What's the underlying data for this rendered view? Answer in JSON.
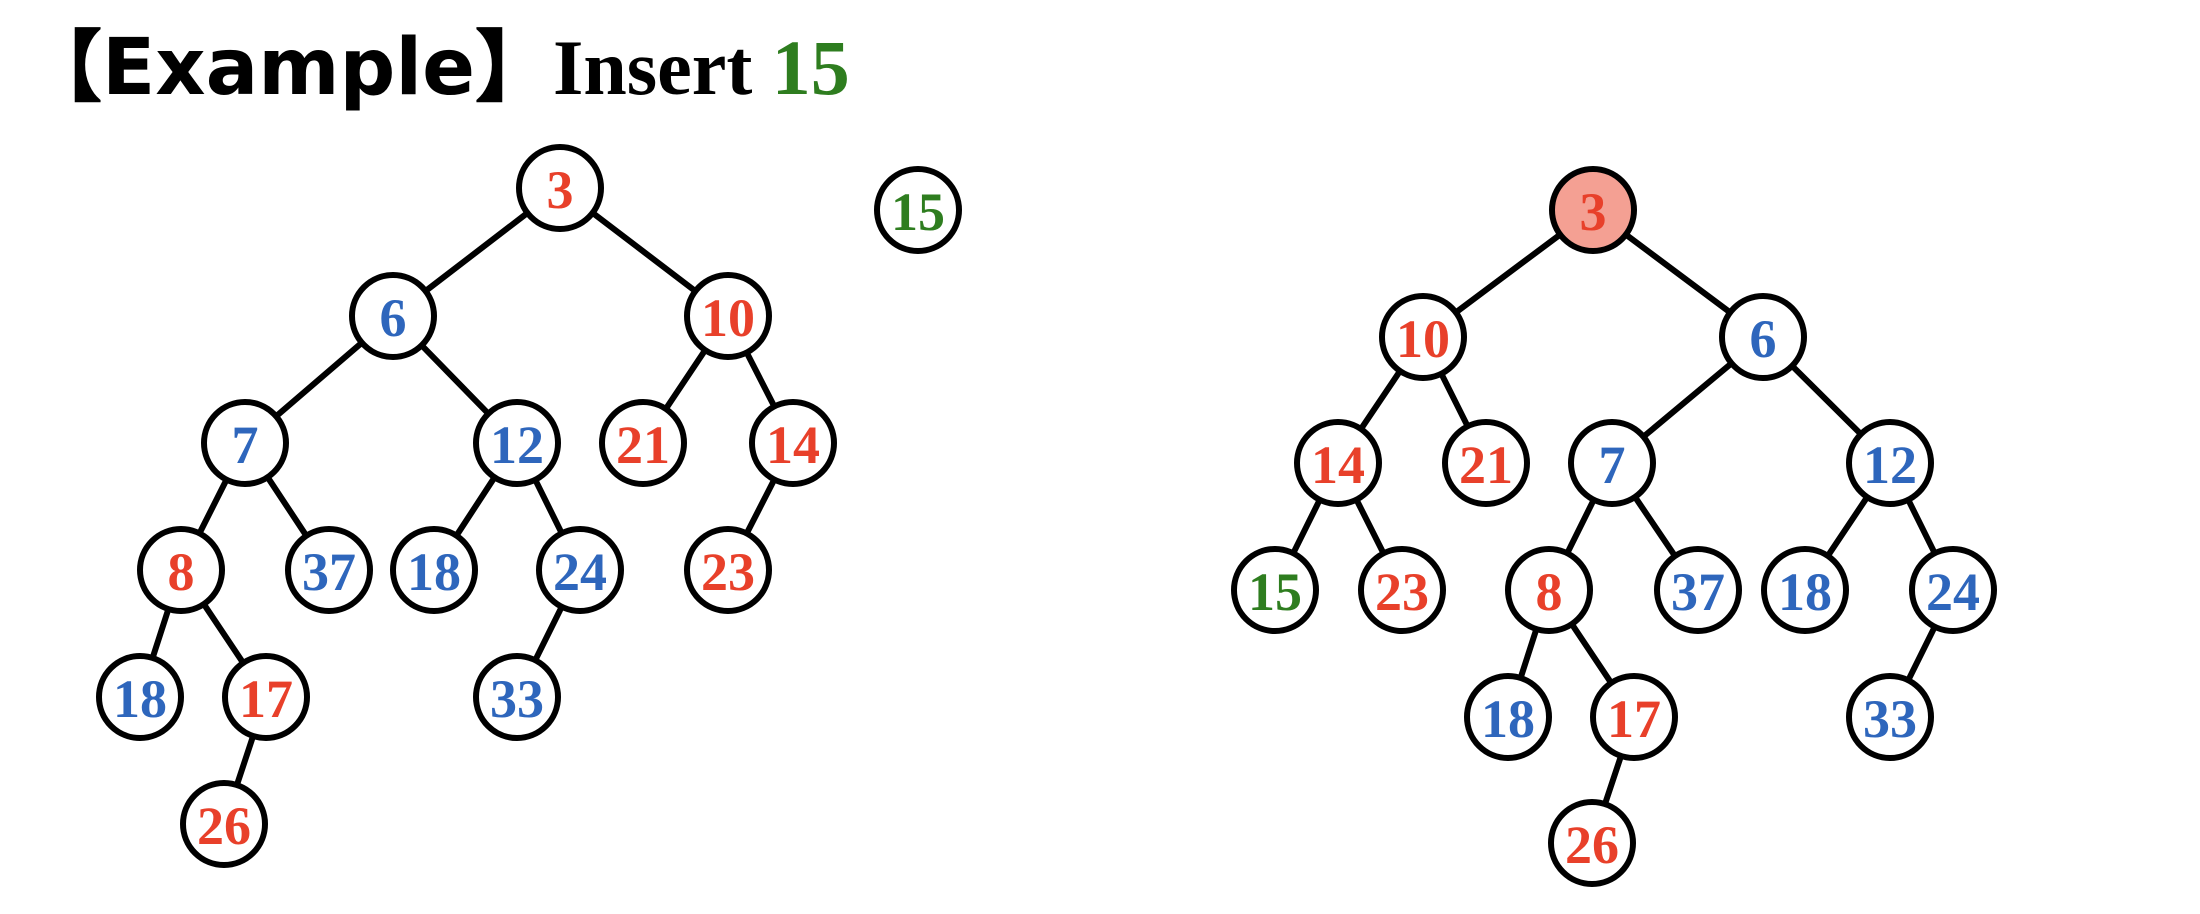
{
  "title": {
    "prefix": "【Example】",
    "action": "Insert",
    "value": "15"
  },
  "colors": {
    "red": "#E8402A",
    "blue": "#2E66BC",
    "green": "#2E7D1F",
    "highlight_fill": "#F4A093",
    "line": "#000000"
  },
  "trees": [
    {
      "name": "before",
      "nodes": [
        {
          "id": "a3",
          "value": "3",
          "color": "red"
        },
        {
          "id": "a6",
          "value": "6",
          "color": "blue",
          "parent": "a3"
        },
        {
          "id": "a10",
          "value": "10",
          "color": "red",
          "parent": "a3"
        },
        {
          "id": "a7",
          "value": "7",
          "color": "blue",
          "parent": "a6"
        },
        {
          "id": "a12",
          "value": "12",
          "color": "blue",
          "parent": "a6"
        },
        {
          "id": "a21",
          "value": "21",
          "color": "red",
          "parent": "a10"
        },
        {
          "id": "a14",
          "value": "14",
          "color": "red",
          "parent": "a10"
        },
        {
          "id": "a8",
          "value": "8",
          "color": "red",
          "parent": "a7"
        },
        {
          "id": "a37",
          "value": "37",
          "color": "blue",
          "parent": "a7"
        },
        {
          "id": "a18b",
          "value": "18",
          "color": "blue",
          "parent": "a12"
        },
        {
          "id": "a24",
          "value": "24",
          "color": "blue",
          "parent": "a12"
        },
        {
          "id": "a23",
          "value": "23",
          "color": "red",
          "parent": "a14"
        },
        {
          "id": "a18a",
          "value": "18",
          "color": "blue",
          "parent": "a8"
        },
        {
          "id": "a17",
          "value": "17",
          "color": "red",
          "parent": "a8"
        },
        {
          "id": "a33",
          "value": "33",
          "color": "blue",
          "parent": "a24"
        },
        {
          "id": "a26",
          "value": "26",
          "color": "red",
          "parent": "a17"
        }
      ]
    },
    {
      "name": "new-node",
      "nodes": [
        {
          "id": "n15",
          "value": "15",
          "color": "green"
        }
      ]
    },
    {
      "name": "after",
      "nodes": [
        {
          "id": "b3",
          "value": "3",
          "color": "red",
          "highlighted": true
        },
        {
          "id": "b10",
          "value": "10",
          "color": "red",
          "parent": "b3"
        },
        {
          "id": "b6",
          "value": "6",
          "color": "blue",
          "parent": "b3"
        },
        {
          "id": "b14",
          "value": "14",
          "color": "red",
          "parent": "b10"
        },
        {
          "id": "b21",
          "value": "21",
          "color": "red",
          "parent": "b10"
        },
        {
          "id": "b7",
          "value": "7",
          "color": "blue",
          "parent": "b6"
        },
        {
          "id": "b12",
          "value": "12",
          "color": "blue",
          "parent": "b6"
        },
        {
          "id": "b15",
          "value": "15",
          "color": "green",
          "parent": "b14"
        },
        {
          "id": "b23",
          "value": "23",
          "color": "red",
          "parent": "b14"
        },
        {
          "id": "b8",
          "value": "8",
          "color": "red",
          "parent": "b7"
        },
        {
          "id": "b37",
          "value": "37",
          "color": "blue",
          "parent": "b7"
        },
        {
          "id": "b18b",
          "value": "18",
          "color": "blue",
          "parent": "b12"
        },
        {
          "id": "b24",
          "value": "24",
          "color": "blue",
          "parent": "b12"
        },
        {
          "id": "b18a",
          "value": "18",
          "color": "blue",
          "parent": "b8"
        },
        {
          "id": "b17",
          "value": "17",
          "color": "red",
          "parent": "b8"
        },
        {
          "id": "b33",
          "value": "33",
          "color": "blue",
          "parent": "b24"
        },
        {
          "id": "b26",
          "value": "26",
          "color": "red",
          "parent": "b17"
        }
      ]
    }
  ]
}
